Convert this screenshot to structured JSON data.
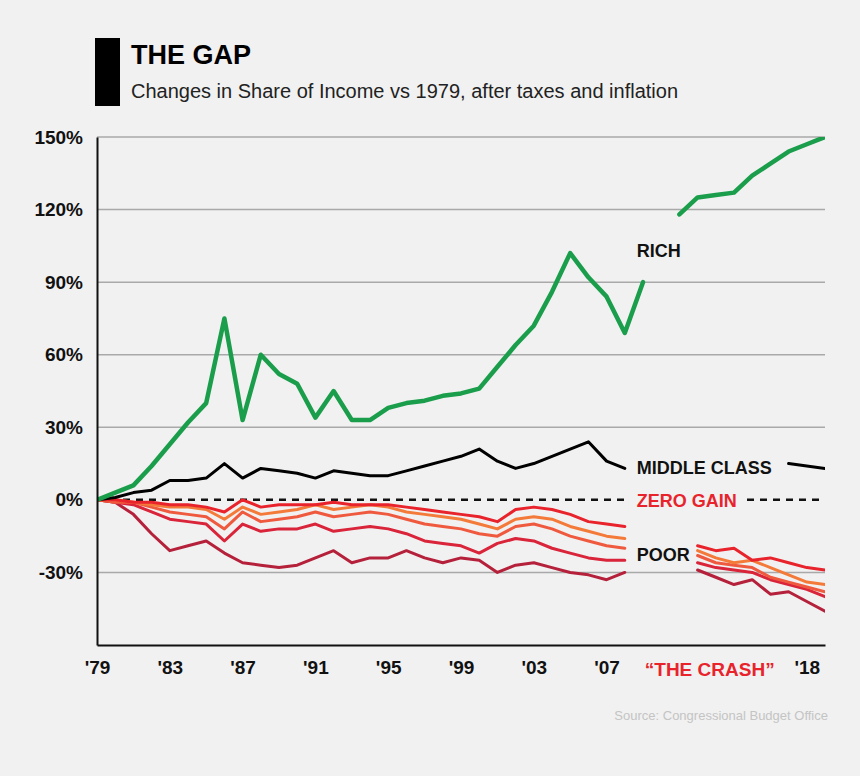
{
  "chart_data": {
    "type": "line",
    "title": "THE GAP",
    "subtitle": "Changes in Share of Income vs 1979, after taxes and inflation",
    "annotations": [
      "ZERO GAIN",
      "“THE CRASH”",
      "Source: Congressional Budget Office"
    ],
    "x": [
      1979,
      1980,
      1981,
      1982,
      1983,
      1984,
      1985,
      1986,
      1987,
      1988,
      1989,
      1990,
      1991,
      1992,
      1993,
      1994,
      1995,
      1996,
      1997,
      1998,
      1999,
      2000,
      2001,
      2002,
      2003,
      2004,
      2005,
      2006,
      2007,
      2008,
      2009,
      2010,
      2011,
      2012,
      2013,
      2014,
      2015,
      2016,
      2017,
      2018,
      2019
    ],
    "xlim": [
      1979,
      2019
    ],
    "xticks": [
      {
        "value": 1979,
        "label": "'79"
      },
      {
        "value": 1983,
        "label": "'83"
      },
      {
        "value": 1987,
        "label": "'87"
      },
      {
        "value": 1991,
        "label": "'91"
      },
      {
        "value": 1995,
        "label": "'95"
      },
      {
        "value": 1999,
        "label": "'99"
      },
      {
        "value": 2003,
        "label": "'03"
      },
      {
        "value": 2007,
        "label": "'07"
      },
      {
        "value": 2018,
        "label": "'18"
      }
    ],
    "ylim": [
      -60,
      150
    ],
    "yticks": [
      {
        "value": -30,
        "label": "-30%"
      },
      {
        "value": 0,
        "label": "0%"
      },
      {
        "value": 30,
        "label": "30%"
      },
      {
        "value": 60,
        "label": "60%"
      },
      {
        "value": 90,
        "label": "90%"
      },
      {
        "value": 120,
        "label": "120%"
      },
      {
        "value": 150,
        "label": "150%"
      }
    ],
    "grid": true,
    "series": [
      {
        "name": "RICH",
        "color": "#1a9e4b",
        "values": [
          0,
          3,
          6,
          14,
          23,
          32,
          40,
          75,
          33,
          60,
          52,
          48,
          34,
          45,
          33,
          33,
          38,
          40,
          41,
          43,
          44,
          46,
          55,
          64,
          72,
          86,
          102,
          92,
          84,
          69,
          90,
          null,
          118,
          125,
          126,
          127,
          134,
          139,
          144,
          147,
          150
        ]
      },
      {
        "name": "MIDDLE CLASS",
        "color": "#000000",
        "values": [
          0,
          1,
          3,
          4,
          8,
          8,
          9,
          15,
          9,
          13,
          12,
          11,
          9,
          12,
          11,
          10,
          10,
          12,
          14,
          16,
          18,
          21,
          16,
          13,
          15,
          18,
          21,
          24,
          16,
          13,
          null,
          null,
          null,
          null,
          null,
          null,
          null,
          null,
          15,
          14,
          13
        ]
      },
      {
        "color": "#e8232b",
        "values": [
          0,
          0,
          -1,
          -1,
          -2,
          -2,
          -3,
          -5,
          0,
          -3,
          -2,
          -2,
          -2,
          -1,
          -2,
          -2,
          -2,
          -3,
          -4,
          -5,
          -6,
          -7,
          -9,
          -4,
          -3,
          -4,
          -6,
          -9,
          -10,
          -11,
          null,
          null,
          null,
          -19,
          -21,
          -20,
          -25,
          -24,
          -26,
          -28,
          -29
        ]
      },
      {
        "color": "#f47a3a",
        "values": [
          0,
          0,
          -1,
          -2,
          -3,
          -3,
          -4,
          -8,
          -3,
          -6,
          -5,
          -4,
          -2,
          -4,
          -3,
          -2,
          -3,
          -5,
          -6,
          -7,
          -8,
          -10,
          -12,
          -8,
          -7,
          -8,
          -11,
          -13,
          -15,
          -16,
          null,
          null,
          null,
          -21,
          -24,
          -26,
          -25,
          -28,
          -31,
          -34,
          -35
        ]
      },
      {
        "color": "#ef5a3f",
        "values": [
          0,
          -1,
          -1,
          -3,
          -5,
          -6,
          -7,
          -12,
          -5,
          -9,
          -8,
          -7,
          -5,
          -7,
          -6,
          -5,
          -6,
          -8,
          -10,
          -11,
          -12,
          -14,
          -15,
          -11,
          -10,
          -12,
          -15,
          -17,
          -19,
          -20,
          null,
          null,
          null,
          -23,
          -26,
          -27,
          -28,
          -32,
          -34,
          -36,
          -38
        ]
      },
      {
        "color": "#d9243a",
        "values": [
          0,
          -1,
          -2,
          -5,
          -8,
          -9,
          -10,
          -17,
          -10,
          -13,
          -12,
          -12,
          -10,
          -13,
          -12,
          -11,
          -12,
          -14,
          -17,
          -18,
          -19,
          -22,
          -18,
          -16,
          -17,
          -20,
          -22,
          -24,
          -25,
          -25,
          null,
          null,
          null,
          -26,
          -28,
          -29,
          -30,
          -33,
          -35,
          -37,
          -40
        ]
      },
      {
        "name": "POOR",
        "color": "#b5213a",
        "values": [
          0,
          -1,
          -6,
          -14,
          -21,
          -19,
          -17,
          -22,
          -26,
          -27,
          -28,
          -27,
          -24,
          -21,
          -26,
          -24,
          -24,
          -21,
          -24,
          -26,
          -24,
          -25,
          -30,
          -27,
          -26,
          -28,
          -30,
          -31,
          -33,
          -30,
          null,
          null,
          null,
          -29,
          -32,
          -35,
          -33,
          -39,
          -38,
          -42,
          -46
        ]
      }
    ]
  }
}
